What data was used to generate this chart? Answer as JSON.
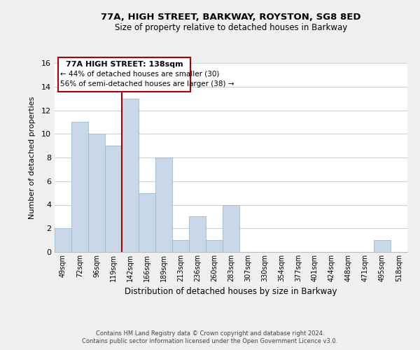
{
  "title": "77A, HIGH STREET, BARKWAY, ROYSTON, SG8 8ED",
  "subtitle": "Size of property relative to detached houses in Barkway",
  "xlabel": "Distribution of detached houses by size in Barkway",
  "ylabel": "Number of detached properties",
  "bar_color": "#c8d8e8",
  "bar_edge_color": "#a8bece",
  "categories": [
    "49sqm",
    "72sqm",
    "96sqm",
    "119sqm",
    "142sqm",
    "166sqm",
    "189sqm",
    "213sqm",
    "236sqm",
    "260sqm",
    "283sqm",
    "307sqm",
    "330sqm",
    "354sqm",
    "377sqm",
    "401sqm",
    "424sqm",
    "448sqm",
    "471sqm",
    "495sqm",
    "518sqm"
  ],
  "values": [
    2,
    11,
    10,
    9,
    13,
    5,
    8,
    1,
    3,
    1,
    4,
    0,
    0,
    0,
    0,
    0,
    0,
    0,
    0,
    1,
    0
  ],
  "ylim": [
    0,
    16
  ],
  "yticks": [
    0,
    2,
    4,
    6,
    8,
    10,
    12,
    14,
    16
  ],
  "property_line_idx": 4,
  "annotation_title": "77A HIGH STREET: 138sqm",
  "annotation_line1": "← 44% of detached houses are smaller (30)",
  "annotation_line2": "56% of semi-detached houses are larger (38) →",
  "footer1": "Contains HM Land Registry data © Crown copyright and database right 2024.",
  "footer2": "Contains public sector information licensed under the Open Government Licence v3.0.",
  "background_color": "#f0f0f0",
  "plot_background": "#ffffff",
  "grid_color": "#c8d4dc",
  "annotation_box_color": "#ffffff",
  "annotation_box_edge": "#aa0000",
  "property_line_color": "#aa0000"
}
